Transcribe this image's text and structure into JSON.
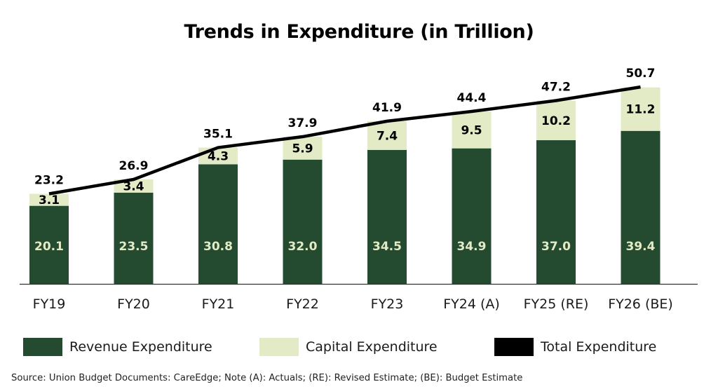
{
  "chart_data": {
    "type": "bar",
    "stacked": true,
    "title": "Trends in Expenditure (in Trillion)",
    "xlabel": "",
    "ylabel": "",
    "ylim": [
      0,
      52
    ],
    "grid": false,
    "legend_position": "bottom",
    "categories": [
      "FY19",
      "FY20",
      "FY21",
      "FY22",
      "FY23",
      "FY24 (A)",
      "FY25 (RE)",
      "FY26 (BE)"
    ],
    "series": [
      {
        "name": "Revenue Expenditure",
        "type": "bar",
        "color": "#244b30",
        "label_color": "#e2ebc5",
        "values": [
          20.1,
          23.5,
          30.8,
          32.0,
          34.5,
          34.9,
          37.0,
          39.4
        ]
      },
      {
        "name": "Capital Expenditure",
        "type": "bar",
        "color": "#e2ebc5",
        "label_color": "#000000",
        "values": [
          3.1,
          3.4,
          4.3,
          5.9,
          7.4,
          9.5,
          10.2,
          11.2
        ]
      },
      {
        "name": "Total Expenditure",
        "type": "line",
        "color": "#000000",
        "label_color": "#000000",
        "values": [
          23.2,
          26.9,
          35.1,
          37.9,
          41.9,
          44.4,
          47.2,
          50.7
        ]
      }
    ],
    "source": "Source: Union Budget Documents: CareEdge; Note (A): Actuals; (RE): Revised Estimate; (BE): Budget Estimate"
  }
}
